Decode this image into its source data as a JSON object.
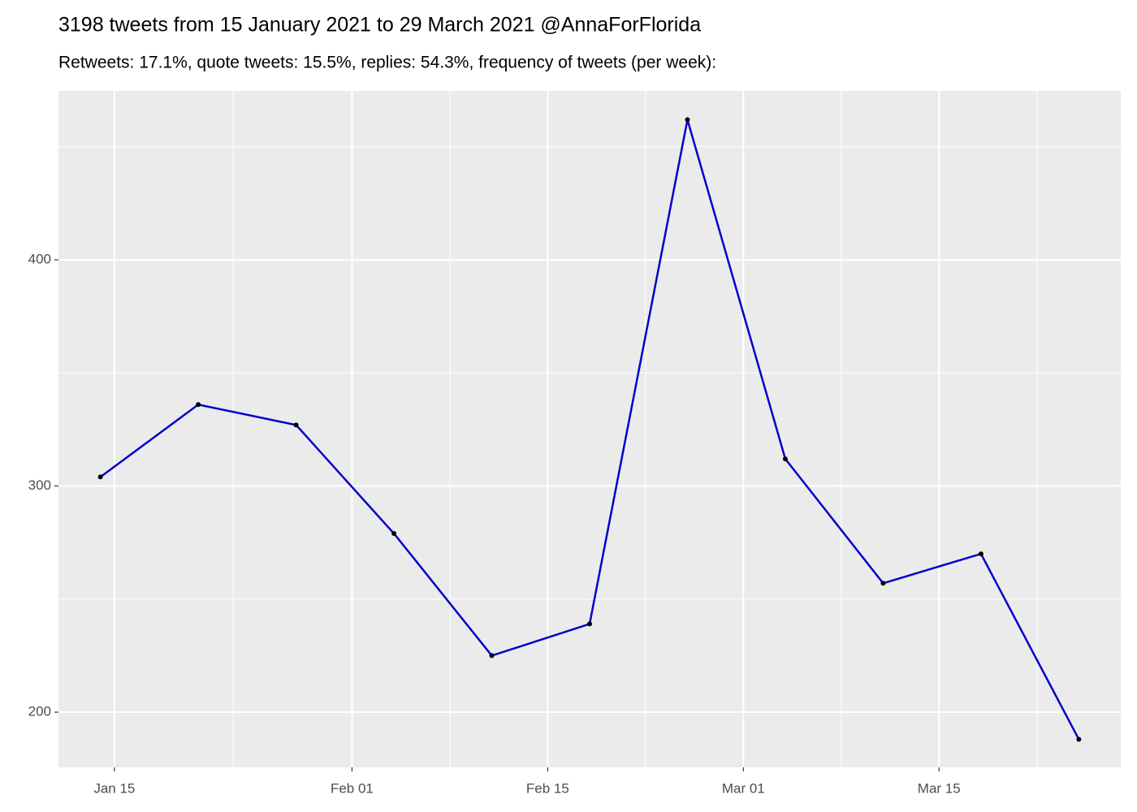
{
  "chart_data": {
    "type": "line",
    "title": "3198 tweets from 15 January 2021 to 29 March 2021 @AnnaForFlorida",
    "subtitle": "Retweets: 17.1%, quote tweets: 15.5%, replies: 54.3%, frequency of tweets (per week):",
    "x": [
      "Jan 14",
      "Jan 21",
      "Jan 28",
      "Feb 04",
      "Feb 11",
      "Feb 18",
      "Feb 25",
      "Mar 04",
      "Mar 11",
      "Mar 18",
      "Mar 25"
    ],
    "series": [
      {
        "color": "#0000cd",
        "values": [
          304,
          336,
          327,
          279,
          225,
          239,
          462,
          312,
          257,
          270,
          188
        ]
      }
    ],
    "xlim": [
      "Jan 11",
      "Mar 28"
    ],
    "xticks": [
      "Jan 15",
      "Feb 01",
      "Feb 15",
      "Mar 01",
      "Mar 15"
    ],
    "ylim": [
      175.6,
      474.7
    ],
    "yticks": [
      200,
      300,
      400
    ],
    "grid": true
  }
}
